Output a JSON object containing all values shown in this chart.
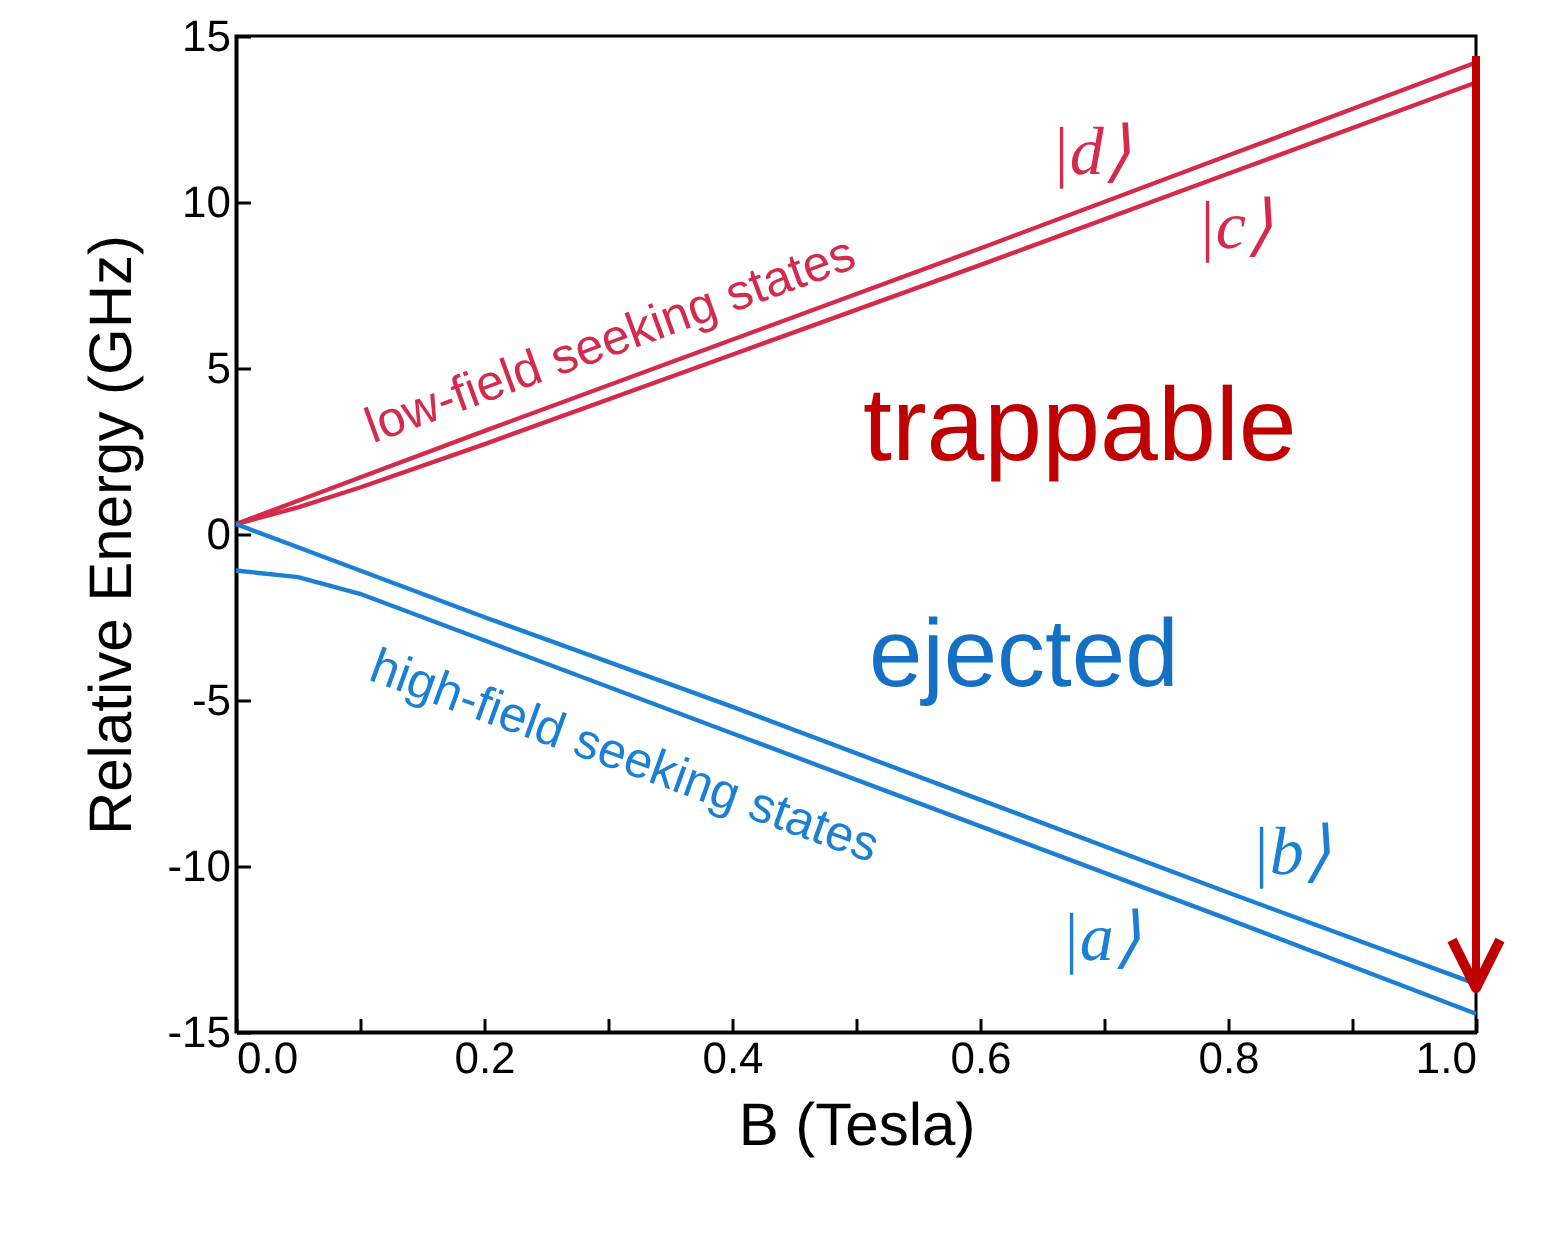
{
  "chart_data": {
    "type": "line",
    "xlabel": "B (Tesla)",
    "ylabel": "Relative Energy (GHz)",
    "x": [
      0,
      0.05,
      0.1,
      0.2,
      0.4,
      0.6,
      0.8,
      1.0
    ],
    "series": [
      {
        "name": "|d⟩",
        "color": "#d42a4c",
        "values": [
          0.3,
          1.0,
          1.7,
          3.1,
          5.85,
          8.6,
          11.4,
          14.2
        ]
      },
      {
        "name": "|c⟩",
        "color": "#d42a4c",
        "values": [
          0.3,
          0.8,
          1.4,
          2.7,
          5.4,
          8.1,
          10.85,
          13.6
        ]
      },
      {
        "name": "|b⟩",
        "color": "#1b80d4",
        "values": [
          0.3,
          -0.4,
          -1.1,
          -2.5,
          -5.2,
          -8.0,
          -10.8,
          -13.55
        ]
      },
      {
        "name": "|a⟩",
        "color": "#1b80d4",
        "values": [
          -1.1,
          -1.3,
          -1.8,
          -3.2,
          -6.0,
          -8.8,
          -11.6,
          -14.45
        ]
      }
    ],
    "xlim": [
      0,
      1.0
    ],
    "ylim": [
      -15,
      15
    ],
    "xticks": [
      {
        "value": 0,
        "label": "0.0"
      },
      {
        "value": 0.1,
        "label": null
      },
      {
        "value": 0.2,
        "label": "0.2"
      },
      {
        "value": 0.3,
        "label": null
      },
      {
        "value": 0.4,
        "label": "0.4"
      },
      {
        "value": 0.5,
        "label": null
      },
      {
        "value": 0.6,
        "label": "0.6"
      },
      {
        "value": 0.7,
        "label": null
      },
      {
        "value": 0.8,
        "label": "0.8"
      },
      {
        "value": 0.9,
        "label": null
      },
      {
        "value": 1.0,
        "label": "1.0"
      }
    ],
    "yticks": [
      -15,
      -10,
      -5,
      0,
      5,
      10,
      15
    ],
    "marker": "none",
    "line_style": "solid",
    "grid": false,
    "annotations": [
      "low-field seeking states",
      "high-field seeking states",
      "trappable",
      "ejected"
    ]
  }
}
